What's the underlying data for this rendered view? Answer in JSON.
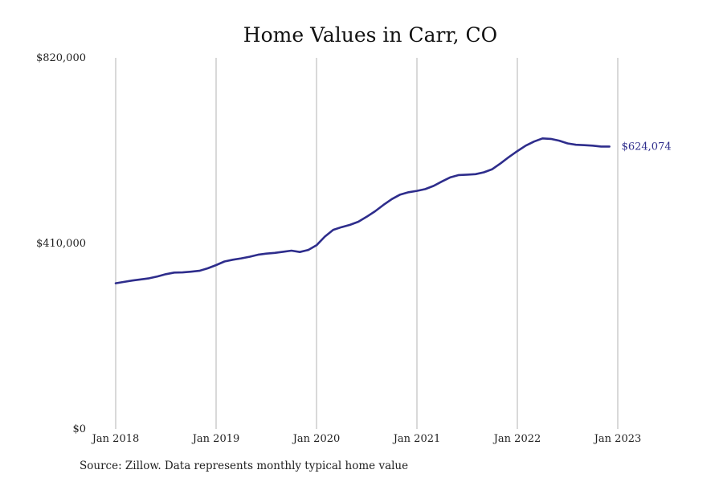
{
  "chart_data": {
    "type": "line",
    "title": "Home Values in Carr, CO",
    "xlabel": "",
    "ylabel": "",
    "ylim": [
      0,
      820000
    ],
    "y_ticks": [
      {
        "value": 0,
        "label": "$0"
      },
      {
        "value": 410000,
        "label": "$410,000"
      },
      {
        "value": 820000,
        "label": "$820,000"
      }
    ],
    "x_ticks": [
      {
        "date": "2018-01",
        "label": "Jan 2018"
      },
      {
        "date": "2019-01",
        "label": "Jan 2019"
      },
      {
        "date": "2020-01",
        "label": "Jan 2020"
      },
      {
        "date": "2021-01",
        "label": "Jan 2021"
      },
      {
        "date": "2022-01",
        "label": "Jan 2022"
      },
      {
        "date": "2023-01",
        "label": "Jan 2023"
      }
    ],
    "grid": "vertical",
    "series": [
      {
        "color": "#2e2d8c",
        "end_label": "$624,074",
        "points": [
          [
            "2018-01",
            322000
          ],
          [
            "2018-02",
            325000
          ],
          [
            "2018-03",
            328000
          ],
          [
            "2018-04",
            330500
          ],
          [
            "2018-05",
            333000
          ],
          [
            "2018-06",
            337000
          ],
          [
            "2018-07",
            342000
          ],
          [
            "2018-08",
            345500
          ],
          [
            "2018-09",
            346000
          ],
          [
            "2018-10",
            347500
          ],
          [
            "2018-11",
            349500
          ],
          [
            "2018-12",
            355000
          ],
          [
            "2019-01",
            362000
          ],
          [
            "2019-02",
            370000
          ],
          [
            "2019-03",
            374000
          ],
          [
            "2019-04",
            377000
          ],
          [
            "2019-05",
            380500
          ],
          [
            "2019-06",
            385000
          ],
          [
            "2019-07",
            387500
          ],
          [
            "2019-08",
            389000
          ],
          [
            "2019-09",
            391500
          ],
          [
            "2019-10",
            394000
          ],
          [
            "2019-11",
            391000
          ],
          [
            "2019-12",
            395500
          ],
          [
            "2020-01",
            406000
          ],
          [
            "2020-02",
            425000
          ],
          [
            "2020-03",
            440000
          ],
          [
            "2020-04",
            446000
          ],
          [
            "2020-05",
            451000
          ],
          [
            "2020-06",
            458000
          ],
          [
            "2020-07",
            469000
          ],
          [
            "2020-08",
            481000
          ],
          [
            "2020-09",
            495000
          ],
          [
            "2020-10",
            508000
          ],
          [
            "2020-11",
            518000
          ],
          [
            "2020-12",
            523000
          ],
          [
            "2021-01",
            526000
          ],
          [
            "2021-02",
            530000
          ],
          [
            "2021-03",
            537000
          ],
          [
            "2021-04",
            547000
          ],
          [
            "2021-05",
            556000
          ],
          [
            "2021-06",
            561000
          ],
          [
            "2021-07",
            562000
          ],
          [
            "2021-08",
            563000
          ],
          [
            "2021-09",
            567000
          ],
          [
            "2021-10",
            574000
          ],
          [
            "2021-11",
            587000
          ],
          [
            "2021-12",
            601000
          ],
          [
            "2022-01",
            614000
          ],
          [
            "2022-02",
            626000
          ],
          [
            "2022-03",
            635000
          ],
          [
            "2022-04",
            642000
          ],
          [
            "2022-05",
            641000
          ],
          [
            "2022-06",
            637000
          ],
          [
            "2022-07",
            631000
          ],
          [
            "2022-08",
            628000
          ],
          [
            "2022-09",
            627000
          ],
          [
            "2022-10",
            626000
          ],
          [
            "2022-11",
            624000
          ],
          [
            "2022-12",
            624074
          ]
        ]
      }
    ]
  },
  "source_note": "Source: Zillow. Data represents monthly typical home value"
}
